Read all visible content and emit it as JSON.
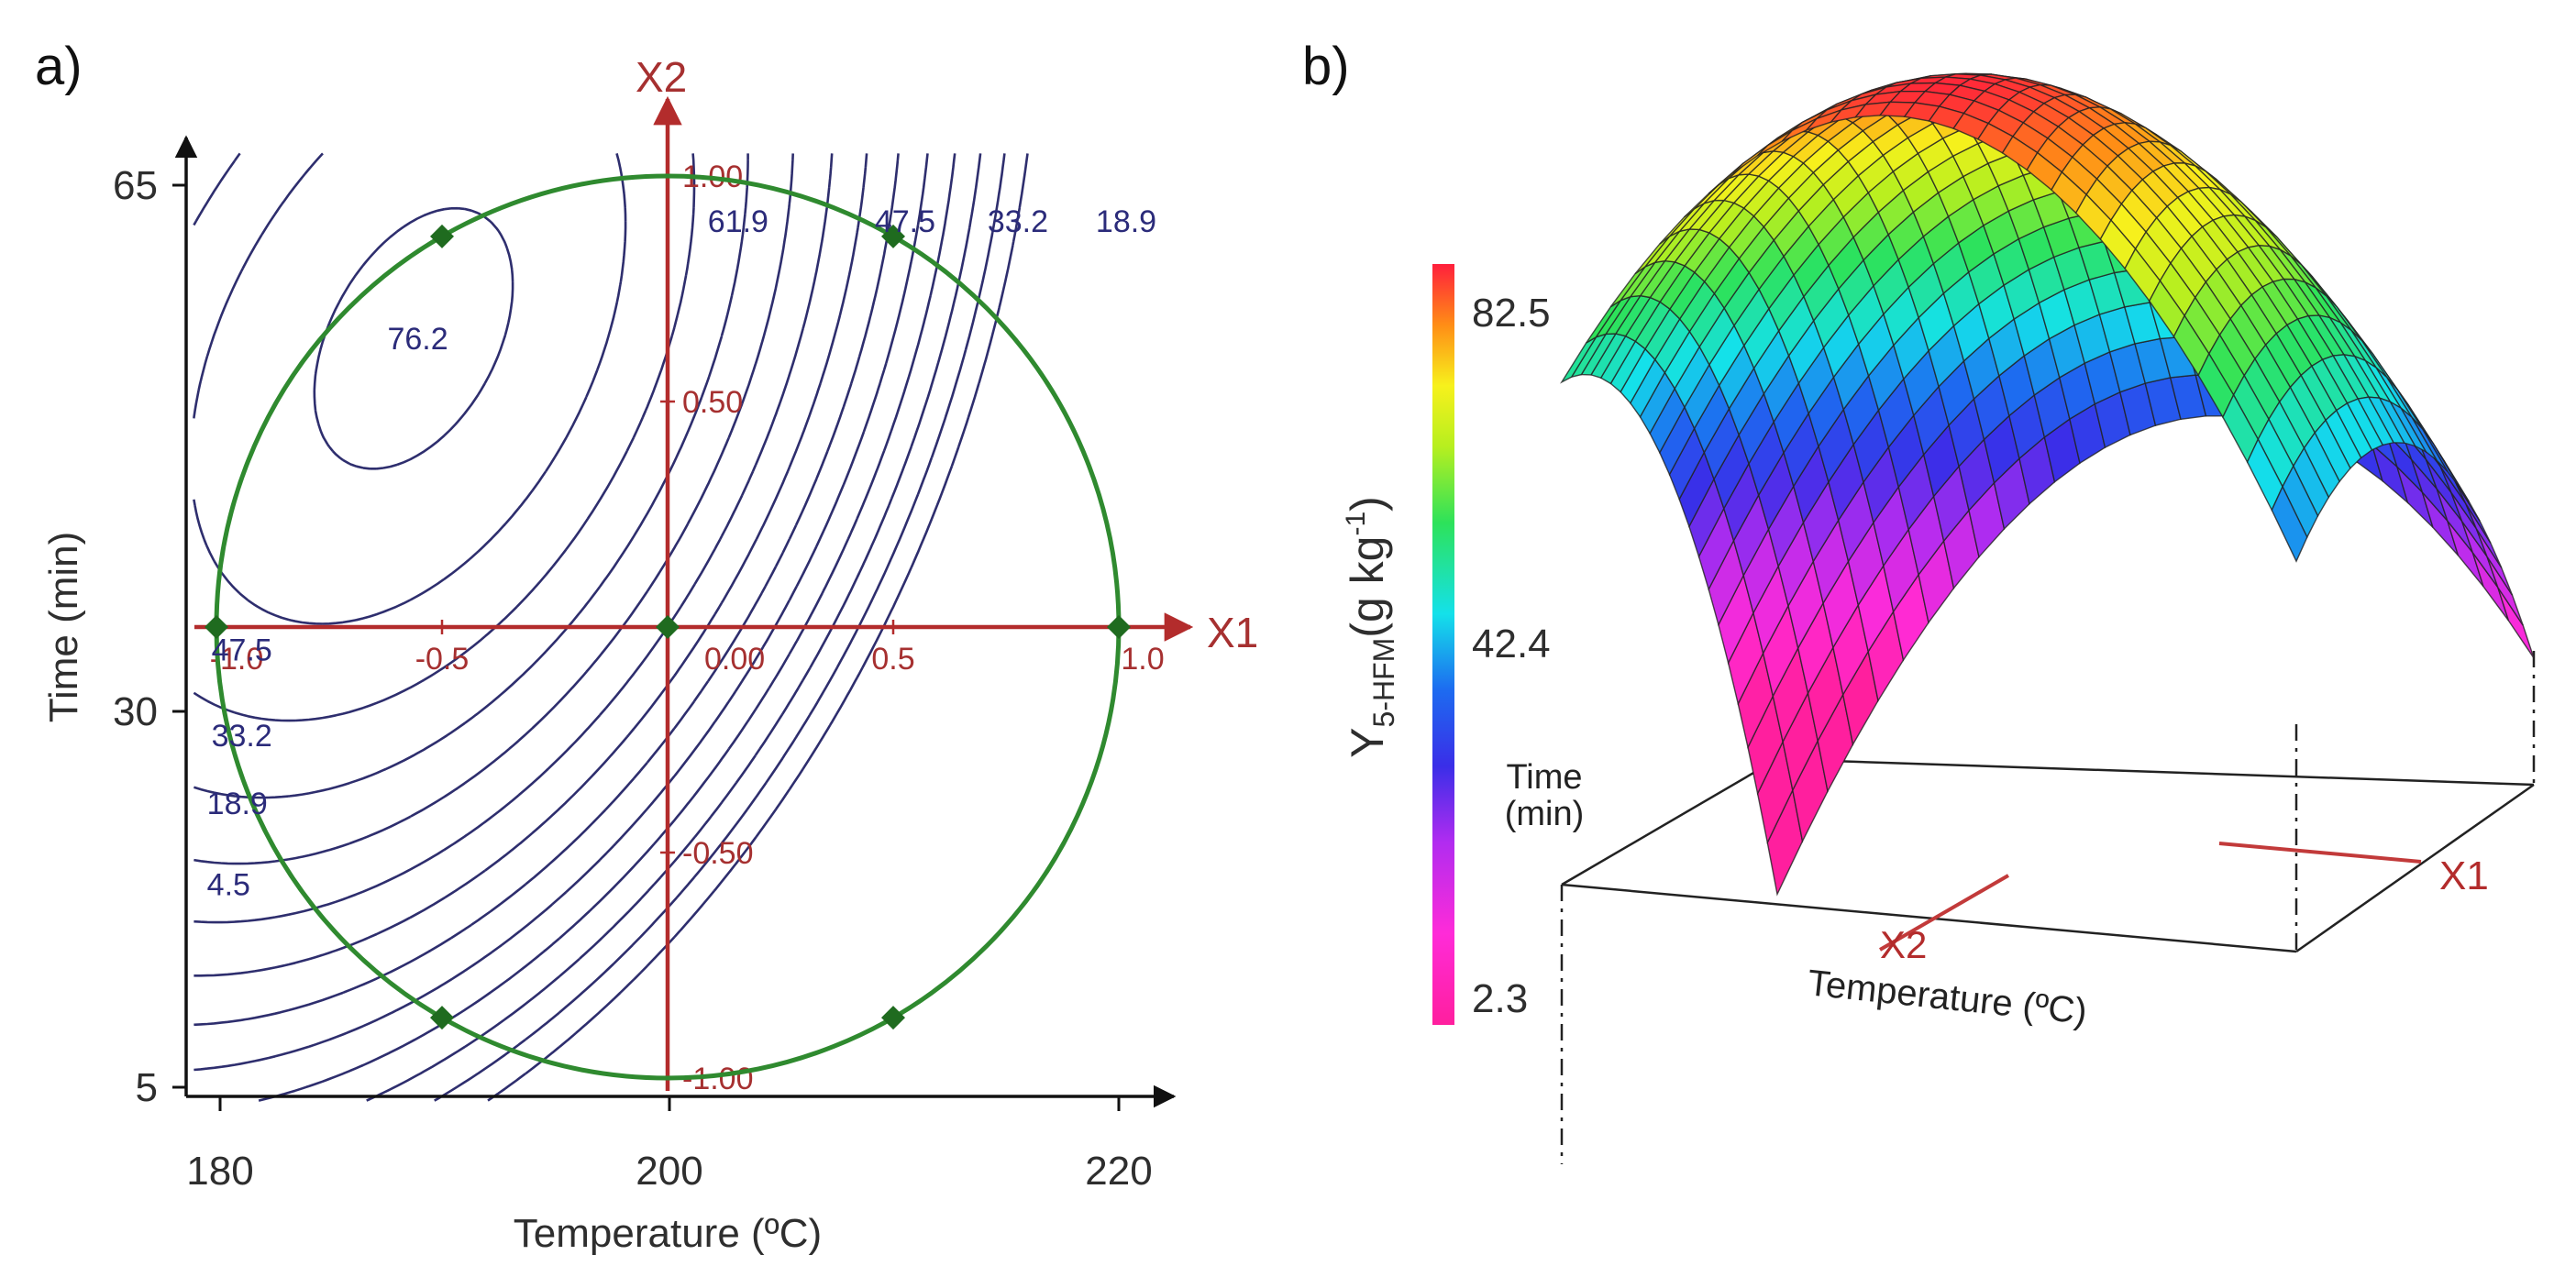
{
  "colors": {
    "axis": "#111111",
    "coded_axis": "#b32c2c",
    "contour": "#2e2e6e",
    "contour_label": "#2b2b7a",
    "design_region": "#2f8a2f",
    "design_point": "#1f6b1f"
  },
  "chart_data": [
    {
      "type": "contour",
      "panel": "a)",
      "xlabel": "Temperature (ºC)",
      "ylabel": "Time (min)",
      "xlim": [
        180,
        220
      ],
      "ylim": [
        5,
        65
      ],
      "x_ticks": [
        "180",
        "200",
        "220"
      ],
      "y_ticks": [
        "5",
        "30",
        "65"
      ],
      "coded_axes": {
        "x_name": "X1",
        "y_name": "X2",
        "x_ticks": [
          {
            "value": -1.0,
            "label": "-1.0"
          },
          {
            "value": -0.5,
            "label": "-0.5"
          },
          {
            "value": 0.0,
            "label": "0.00"
          },
          {
            "value": 0.5,
            "label": "0.5"
          },
          {
            "value": 1.0,
            "label": "1.0"
          }
        ],
        "y_ticks": [
          {
            "value": 1.0,
            "label": "1.00"
          },
          {
            "value": 0.5,
            "label": "0.50"
          },
          {
            "value": -0.5,
            "label": "-0.50"
          },
          {
            "value": -1.0,
            "label": "-1.00"
          }
        ]
      },
      "design_region": "circle, coded radius 1",
      "design_points": [
        {
          "x1": -1,
          "x2": 0
        },
        {
          "x1": 0,
          "x2": 0
        },
        {
          "x1": 1,
          "x2": 0
        },
        {
          "x1": -0.5,
          "x2": 0.866
        },
        {
          "x1": 0.5,
          "x2": 0.866
        },
        {
          "x1": -0.5,
          "x2": -0.866
        },
        {
          "x1": 0.5,
          "x2": -0.866
        }
      ],
      "contour_labels": [
        {
          "text": "76.2",
          "x1": -0.56,
          "x2": 0.64
        },
        {
          "text": "61.9",
          "x1": 0.15,
          "x2": 0.9
        },
        {
          "text": "47.5",
          "x1": 0.52,
          "x2": 0.9
        },
        {
          "text": "33.2",
          "x1": 0.77,
          "x2": 0.9
        },
        {
          "text": "18.9",
          "x1": 1.01,
          "x2": 0.9
        },
        {
          "text": "47.5",
          "x1": -0.95,
          "x2": -0.05
        },
        {
          "text": "33.2",
          "x1": -0.95,
          "x2": -0.24
        },
        {
          "text": "18.9",
          "x1": -0.96,
          "x2": -0.39
        },
        {
          "text": "4.5",
          "x1": -0.96,
          "x2": -0.57
        }
      ]
    },
    {
      "type": "surface3d",
      "panel": "b)",
      "zlabel_main": "Y",
      "zlabel_sub": "5-HFM",
      "zlabel_unit": "(g kg",
      "zlabel_exp": "-1",
      "zlabel_close": ")",
      "colorbar_ticks": [
        "82.5",
        "42.4",
        "2.3"
      ],
      "colorbar_range": [
        2.3,
        82.5
      ],
      "x_axis_name": "X1",
      "y_axis_name": "X2",
      "time_label_1": "Time",
      "time_label_2": "(min)",
      "temperature_label": "Temperature (ºC)"
    }
  ]
}
